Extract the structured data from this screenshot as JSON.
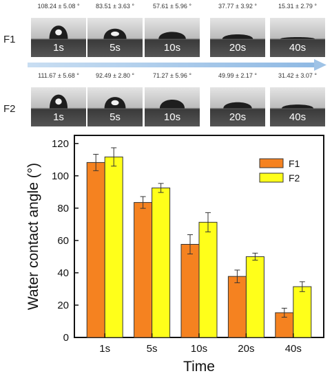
{
  "chart_data": {
    "type": "bar",
    "title": "",
    "xlabel": "Time",
    "ylabel": "Water contact angle (°)",
    "categories": [
      "1s",
      "5s",
      "10s",
      "20s",
      "40s"
    ],
    "ylim": [
      0,
      125
    ],
    "yticks": [
      0,
      20,
      40,
      60,
      80,
      100,
      120
    ],
    "legend_position": "top-right",
    "grid": false,
    "series": [
      {
        "name": "F1",
        "color": "#f58220",
        "values": [
          108.24,
          83.51,
          57.61,
          37.77,
          15.31
        ],
        "errors": [
          5.08,
          3.63,
          5.96,
          3.92,
          2.79
        ],
        "captions": [
          "108.24 ± 5.08 °",
          "83.51 ± 3.63 °",
          "57.61 ± 5.96 °",
          "37.77 ± 3.92 °",
          "15.31 ± 2.79 °"
        ]
      },
      {
        "name": "F2",
        "color": "#ffff1a",
        "values": [
          111.67,
          92.49,
          71.27,
          49.99,
          31.42
        ],
        "errors": [
          5.68,
          2.8,
          5.96,
          2.17,
          3.07
        ],
        "captions": [
          "111.67 ± 5.68 °",
          "92.49 ± 2.80 °",
          "71.27 ± 5.96 °",
          "49.99 ± 2.17 °",
          "31.42 ± 3.07 °"
        ]
      }
    ]
  },
  "photo_strip": {
    "rows": [
      "F1",
      "F2"
    ],
    "times": [
      "1s",
      "5s",
      "10s",
      "20s",
      "40s"
    ],
    "arrow_color": "#9fc3e6"
  }
}
